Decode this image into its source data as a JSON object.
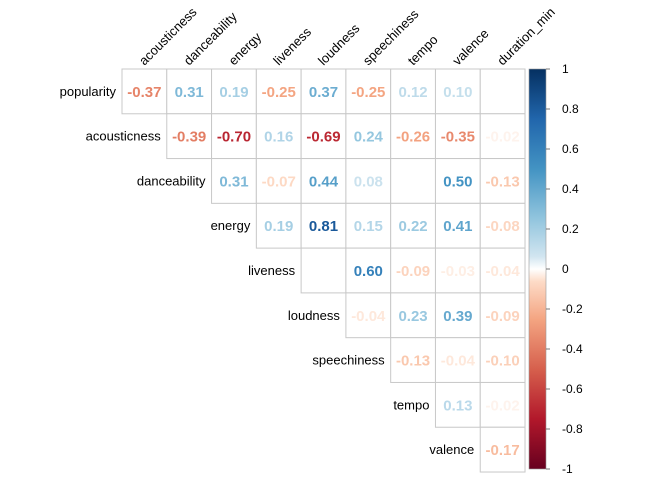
{
  "chart_data": {
    "type": "heatmap",
    "subtype": "correlation-matrix-upper",
    "variables": [
      "popularity",
      "acousticness",
      "danceability",
      "energy",
      "liveness",
      "loudness",
      "speechiness",
      "tempo",
      "valence",
      "duration_min"
    ],
    "row_labels": [
      "popularity",
      "acousticness",
      "danceability",
      "energy",
      "liveness",
      "loudness",
      "speechiness",
      "tempo",
      "valence"
    ],
    "col_labels": [
      "acousticness",
      "danceability",
      "energy",
      "liveness",
      "loudness",
      "speechiness",
      "tempo",
      "valence",
      "duration_min"
    ],
    "values": [
      [
        -0.37,
        0.31,
        0.19,
        -0.25,
        0.37,
        -0.25,
        0.12,
        0.1,
        0.0
      ],
      [
        -0.39,
        -0.7,
        0.16,
        -0.69,
        0.24,
        -0.26,
        -0.35,
        -0.02
      ],
      [
        0.31,
        -0.07,
        0.44,
        0.08,
        0.0,
        0.5,
        -0.13
      ],
      [
        0.19,
        0.81,
        0.15,
        0.22,
        0.41,
        -0.08
      ],
      [
        0.0,
        0.6,
        -0.09,
        -0.03,
        -0.04
      ],
      [
        -0.04,
        0.23,
        0.39,
        -0.09
      ],
      [
        -0.13,
        -0.04,
        -0.1
      ],
      [
        0.13,
        -0.02
      ],
      [
        -0.17
      ]
    ],
    "labels": [
      [
        "-0.37",
        "0.31",
        "0.19",
        "-0.25",
        "0.37",
        "-0.25",
        "0.12",
        "0.10",
        ""
      ],
      [
        "-0.39",
        "-0.70",
        "0.16",
        "-0.69",
        "0.24",
        "-0.26",
        "-0.35",
        "-0.02"
      ],
      [
        "0.31",
        "-0.07",
        "0.44",
        "0.08",
        "",
        "0.50",
        "-0.13"
      ],
      [
        "0.19",
        "0.81",
        "0.15",
        "0.22",
        "0.41",
        "-0.08"
      ],
      [
        "",
        "0.60",
        "-0.09",
        "-0.03",
        "-0.04"
      ],
      [
        "-0.04",
        "0.23",
        "0.39",
        "-0.09"
      ],
      [
        "-0.13",
        "-0.04",
        "-0.10"
      ],
      [
        "0.13",
        "-0.02"
      ],
      [
        "-0.17"
      ]
    ],
    "colorbar": {
      "range": [
        -1,
        1
      ],
      "ticks": [
        "1",
        "0.8",
        "0.6",
        "0.4",
        "0.2",
        "0",
        "-0.2",
        "-0.4",
        "-0.6",
        "-0.8",
        "-1"
      ],
      "low_color": "#67001F",
      "mid_color": "#FFFFFF",
      "high_color": "#053061",
      "placement": "right"
    },
    "grid": true,
    "title": "",
    "xlabel": "",
    "ylabel": ""
  }
}
